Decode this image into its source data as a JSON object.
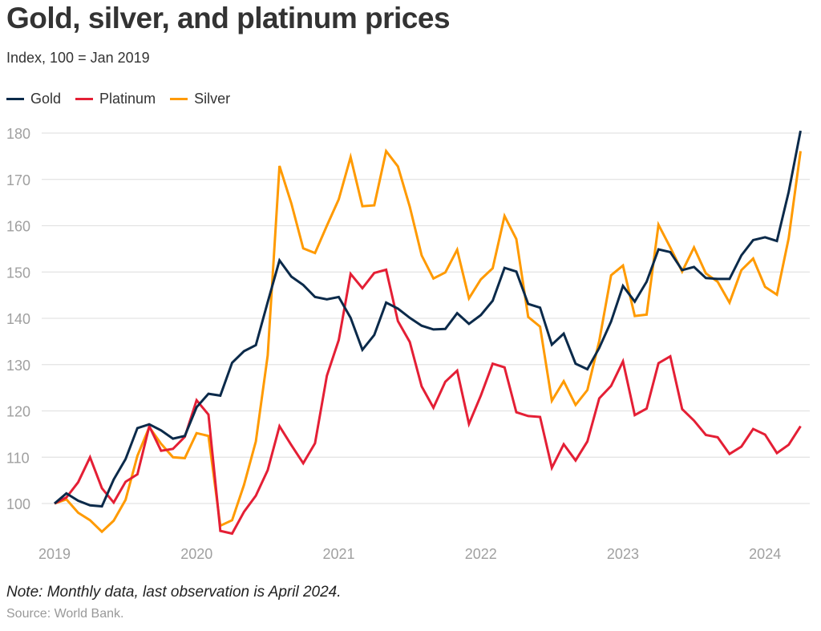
{
  "chart_data": {
    "type": "line",
    "title": "Gold, silver, and platinum prices",
    "subtitle": "Index, 100 = Jan 2019",
    "note": "Note: Monthly data, last observation is April 2024.",
    "source": "Source: World Bank.",
    "x_start": "2019-01",
    "x_end": "2024-04",
    "x_frequency": "monthly",
    "x_tick_labels": [
      "2019",
      "2020",
      "2021",
      "2022",
      "2023",
      "2024"
    ],
    "y_ticks": [
      100,
      110,
      120,
      130,
      140,
      150,
      160,
      170,
      180
    ],
    "ylim": [
      92,
      182
    ],
    "grid": true,
    "legend": "top-left",
    "series": [
      {
        "name": "Gold",
        "color": "#0b2a4a",
        "values": [
          100,
          102.2,
          100.6,
          99.6,
          99.4,
          105.2,
          109.6,
          116.3,
          117.1,
          115.8,
          114,
          114.6,
          120.8,
          123.7,
          123.3,
          130.4,
          132.9,
          134.2,
          143.5,
          152.5,
          149,
          147.2,
          144.6,
          144.1,
          144.6,
          140.1,
          133.2,
          136.4,
          143.4,
          142.1,
          140.1,
          138.4,
          137.6,
          137.7,
          141.1,
          138.8,
          140.7,
          143.8,
          150.9,
          150.1,
          143.1,
          142.3,
          134.3,
          136.7,
          130.2,
          129,
          133.6,
          139.3,
          147,
          143.6,
          147.9,
          154.9,
          154.3,
          150.4,
          151.1,
          148.7,
          148.5,
          148.5,
          153.6,
          156.9,
          157.5,
          156.7,
          167.3,
          180.5
        ]
      },
      {
        "name": "Platinum",
        "color": "#e41f35",
        "values": [
          100,
          101.3,
          104.6,
          110,
          103.3,
          100.2,
          104.7,
          106.3,
          116.7,
          111.4,
          111.8,
          114.4,
          122.3,
          119.2,
          94.1,
          93.5,
          98.2,
          101.7,
          107.2,
          116.7,
          112.6,
          108.7,
          113,
          127.6,
          135.3,
          149.6,
          146.5,
          149.8,
          150.5,
          139.4,
          134.9,
          125.3,
          120.7,
          126.3,
          128.7,
          117.2,
          123.3,
          130.2,
          129.4,
          119.7,
          118.9,
          118.7,
          107.7,
          112.8,
          109.3,
          113.4,
          122.7,
          125.4,
          130.7,
          119.1,
          120.5,
          130.3,
          131.8,
          120.4,
          117.9,
          114.8,
          114.3,
          110.7,
          112.3,
          116.1,
          114.9,
          110.9,
          112.7,
          116.7
        ]
      },
      {
        "name": "Silver",
        "color": "#ff9a00",
        "values": [
          100,
          100.9,
          98,
          96.4,
          93.9,
          96.3,
          100.8,
          110.3,
          116.5,
          112.9,
          110,
          109.8,
          115.2,
          114.6,
          95.2,
          96.4,
          104,
          113.4,
          132,
          172.9,
          164.8,
          155.1,
          154.1,
          160,
          165.7,
          174.8,
          164.2,
          164.4,
          176.1,
          172.8,
          164.1,
          153.6,
          148.6,
          149.9,
          154.8,
          144.3,
          148.4,
          150.8,
          162.1,
          157.1,
          140.3,
          138.2,
          122.2,
          126.4,
          121.3,
          124.5,
          135.1,
          149.3,
          151.4,
          140.5,
          140.8,
          160.2,
          155.3,
          150.1,
          155.3,
          149.7,
          147.9,
          143.4,
          150.4,
          152.9,
          146.8,
          145.1,
          157.3,
          176.1
        ]
      }
    ]
  }
}
